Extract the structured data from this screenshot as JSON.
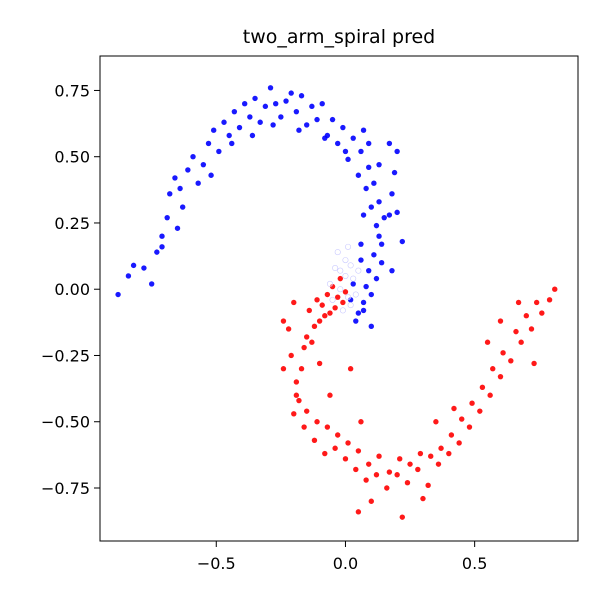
{
  "chart_data": {
    "type": "scatter",
    "title": "two_arm_spiral pred",
    "xlabel": "",
    "ylabel": "",
    "xlim": [
      -0.95,
      0.9
    ],
    "ylim": [
      -0.95,
      0.88
    ],
    "xticks": [
      -0.5,
      0.0,
      0.5
    ],
    "xtick_labels": [
      "−0.5",
      "0.0",
      "0.5"
    ],
    "yticks": [
      0.75,
      0.5,
      0.25,
      0.0,
      -0.25,
      -0.5,
      -0.75
    ],
    "ytick_labels": [
      "0.75",
      "0.50",
      "0.25",
      "0.00",
      "−0.25",
      "−0.50",
      "−0.75"
    ],
    "grid": false,
    "legend": false,
    "colors": {
      "class_a": "#0000ff",
      "class_b": "#ff0000",
      "uncertain": "#ffffff"
    },
    "series": [
      {
        "values": [
          {
            "x": -0.88,
            "y": -0.02
          },
          {
            "x": -0.84,
            "y": 0.05
          },
          {
            "x": -0.82,
            "y": 0.09
          },
          {
            "x": -0.78,
            "y": 0.08
          },
          {
            "x": -0.75,
            "y": 0.02
          },
          {
            "x": -0.73,
            "y": 0.14
          },
          {
            "x": -0.71,
            "y": 0.2
          },
          {
            "x": -0.69,
            "y": 0.27
          },
          {
            "x": -0.68,
            "y": 0.36
          },
          {
            "x": -0.66,
            "y": 0.42
          },
          {
            "x": -0.64,
            "y": 0.38
          },
          {
            "x": -0.63,
            "y": 0.31
          },
          {
            "x": -0.61,
            "y": 0.45
          },
          {
            "x": -0.59,
            "y": 0.5
          },
          {
            "x": -0.57,
            "y": 0.4
          },
          {
            "x": -0.55,
            "y": 0.47
          },
          {
            "x": -0.53,
            "y": 0.55
          },
          {
            "x": -0.51,
            "y": 0.6
          },
          {
            "x": -0.49,
            "y": 0.52
          },
          {
            "x": -0.47,
            "y": 0.63
          },
          {
            "x": -0.45,
            "y": 0.58
          },
          {
            "x": -0.43,
            "y": 0.67
          },
          {
            "x": -0.41,
            "y": 0.61
          },
          {
            "x": -0.39,
            "y": 0.7
          },
          {
            "x": -0.37,
            "y": 0.65
          },
          {
            "x": -0.35,
            "y": 0.72
          },
          {
            "x": -0.33,
            "y": 0.63
          },
          {
            "x": -0.31,
            "y": 0.69
          },
          {
            "x": -0.29,
            "y": 0.76
          },
          {
            "x": -0.27,
            "y": 0.7
          },
          {
            "x": -0.25,
            "y": 0.65
          },
          {
            "x": -0.23,
            "y": 0.71
          },
          {
            "x": -0.21,
            "y": 0.74
          },
          {
            "x": -0.19,
            "y": 0.67
          },
          {
            "x": -0.17,
            "y": 0.73
          },
          {
            "x": -0.15,
            "y": 0.62
          },
          {
            "x": -0.13,
            "y": 0.69
          },
          {
            "x": -0.11,
            "y": 0.64
          },
          {
            "x": -0.09,
            "y": 0.7
          },
          {
            "x": -0.07,
            "y": 0.58
          },
          {
            "x": -0.05,
            "y": 0.64
          },
          {
            "x": -0.03,
            "y": 0.55
          },
          {
            "x": -0.01,
            "y": 0.61
          },
          {
            "x": 0.01,
            "y": 0.49
          },
          {
            "x": 0.03,
            "y": 0.57
          },
          {
            "x": 0.05,
            "y": 0.43
          },
          {
            "x": 0.06,
            "y": 0.52
          },
          {
            "x": 0.08,
            "y": 0.38
          },
          {
            "x": 0.09,
            "y": 0.46
          },
          {
            "x": 0.1,
            "y": 0.31
          },
          {
            "x": 0.11,
            "y": 0.4
          },
          {
            "x": 0.12,
            "y": 0.24
          },
          {
            "x": 0.13,
            "y": 0.33
          },
          {
            "x": 0.14,
            "y": 0.17
          },
          {
            "x": 0.15,
            "y": 0.27
          },
          {
            "x": 0.14,
            "y": 0.1
          },
          {
            "x": 0.13,
            "y": 0.2
          },
          {
            "x": 0.12,
            "y": 0.04
          },
          {
            "x": 0.11,
            "y": 0.13
          },
          {
            "x": 0.1,
            "y": -0.02
          },
          {
            "x": 0.09,
            "y": 0.07
          },
          {
            "x": 0.08,
            "y": 0.01
          },
          {
            "x": 0.07,
            "y": -0.05
          },
          {
            "x": 0.06,
            "y": 0.11
          },
          {
            "x": 0.05,
            "y": -0.09
          },
          {
            "x": 0.04,
            "y": -0.12
          },
          {
            "x": 0.03,
            "y": 0.02
          },
          {
            "x": 0.02,
            "y": -0.04
          },
          {
            "x": 0.17,
            "y": 0.28
          },
          {
            "x": 0.18,
            "y": 0.36
          },
          {
            "x": 0.2,
            "y": 0.29
          },
          {
            "x": 0.19,
            "y": 0.44
          },
          {
            "x": 0.2,
            "y": 0.52
          },
          {
            "x": 0.17,
            "y": 0.55
          },
          {
            "x": 0.22,
            "y": 0.18
          },
          {
            "x": 0.18,
            "y": 0.07
          },
          {
            "x": -0.71,
            "y": 0.16
          },
          {
            "x": -0.65,
            "y": 0.23
          },
          {
            "x": -0.52,
            "y": 0.43
          },
          {
            "x": -0.44,
            "y": 0.55
          },
          {
            "x": -0.36,
            "y": 0.58
          },
          {
            "x": -0.28,
            "y": 0.62
          },
          {
            "x": -0.18,
            "y": 0.6
          },
          {
            "x": -0.08,
            "y": 0.57
          },
          {
            "x": 0.0,
            "y": 0.52
          },
          {
            "x": 0.07,
            "y": 0.6
          },
          {
            "x": 0.09,
            "y": 0.55
          },
          {
            "x": 0.13,
            "y": 0.47
          },
          {
            "x": 0.07,
            "y": 0.28
          },
          {
            "x": 0.06,
            "y": 0.17
          },
          {
            "x": 0.07,
            "y": -0.08
          },
          {
            "x": 0.1,
            "y": -0.14
          }
        ]
      },
      {
        "values": [
          {
            "x": -0.22,
            "y": -0.15
          },
          {
            "x": -0.21,
            "y": -0.25
          },
          {
            "x": -0.19,
            "y": -0.35
          },
          {
            "x": -0.18,
            "y": -0.42
          },
          {
            "x": -0.17,
            "y": -0.3
          },
          {
            "x": -0.16,
            "y": -0.22
          },
          {
            "x": -0.15,
            "y": -0.18
          },
          {
            "x": -0.14,
            "y": -0.08
          },
          {
            "x": -0.13,
            "y": -0.2
          },
          {
            "x": -0.12,
            "y": -0.14
          },
          {
            "x": -0.11,
            "y": -0.04
          },
          {
            "x": -0.1,
            "y": -0.12
          },
          {
            "x": -0.09,
            "y": -0.06
          },
          {
            "x": -0.08,
            "y": -0.1
          },
          {
            "x": -0.07,
            "y": -0.02
          },
          {
            "x": -0.06,
            "y": -0.09
          },
          {
            "x": -0.05,
            "y": 0.01
          },
          {
            "x": -0.04,
            "y": -0.07
          },
          {
            "x": -0.03,
            "y": -0.03
          },
          {
            "x": -0.02,
            "y": 0.04
          },
          {
            "x": -0.01,
            "y": -0.05
          },
          {
            "x": 0.0,
            "y": -0.01
          },
          {
            "x": -0.24,
            "y": -0.3
          },
          {
            "x": -0.2,
            "y": -0.47
          },
          {
            "x": -0.16,
            "y": -0.52
          },
          {
            "x": -0.12,
            "y": -0.57
          },
          {
            "x": -0.08,
            "y": -0.62
          },
          {
            "x": -0.04,
            "y": -0.6
          },
          {
            "x": 0.0,
            "y": -0.64
          },
          {
            "x": 0.04,
            "y": -0.68
          },
          {
            "x": 0.08,
            "y": -0.72
          },
          {
            "x": 0.12,
            "y": -0.7
          },
          {
            "x": 0.16,
            "y": -0.75
          },
          {
            "x": 0.2,
            "y": -0.7
          },
          {
            "x": 0.24,
            "y": -0.73
          },
          {
            "x": 0.28,
            "y": -0.68
          },
          {
            "x": 0.32,
            "y": -0.74
          },
          {
            "x": 0.36,
            "y": -0.66
          },
          {
            "x": 0.4,
            "y": -0.62
          },
          {
            "x": 0.44,
            "y": -0.58
          },
          {
            "x": 0.48,
            "y": -0.52
          },
          {
            "x": 0.52,
            "y": -0.46
          },
          {
            "x": 0.56,
            "y": -0.4
          },
          {
            "x": 0.6,
            "y": -0.33
          },
          {
            "x": 0.64,
            "y": -0.27
          },
          {
            "x": 0.68,
            "y": -0.2
          },
          {
            "x": 0.72,
            "y": -0.15
          },
          {
            "x": 0.76,
            "y": -0.09
          },
          {
            "x": 0.79,
            "y": -0.04
          },
          {
            "x": 0.81,
            "y": 0.0
          },
          {
            "x": 0.74,
            "y": -0.05
          },
          {
            "x": 0.7,
            "y": -0.1
          },
          {
            "x": 0.66,
            "y": -0.16
          },
          {
            "x": 0.61,
            "y": -0.24
          },
          {
            "x": 0.57,
            "y": -0.3
          },
          {
            "x": 0.53,
            "y": -0.37
          },
          {
            "x": 0.49,
            "y": -0.43
          },
          {
            "x": 0.45,
            "y": -0.49
          },
          {
            "x": 0.41,
            "y": -0.55
          },
          {
            "x": 0.37,
            "y": -0.6
          },
          {
            "x": 0.33,
            "y": -0.63
          },
          {
            "x": 0.29,
            "y": -0.62
          },
          {
            "x": 0.25,
            "y": -0.66
          },
          {
            "x": 0.21,
            "y": -0.64
          },
          {
            "x": 0.17,
            "y": -0.69
          },
          {
            "x": 0.13,
            "y": -0.63
          },
          {
            "x": 0.09,
            "y": -0.66
          },
          {
            "x": 0.05,
            "y": -0.61
          },
          {
            "x": 0.01,
            "y": -0.58
          },
          {
            "x": -0.03,
            "y": -0.55
          },
          {
            "x": -0.07,
            "y": -0.52
          },
          {
            "x": -0.11,
            "y": -0.5
          },
          {
            "x": -0.15,
            "y": -0.46
          },
          {
            "x": -0.19,
            "y": -0.4
          },
          {
            "x": 0.1,
            "y": -0.8
          },
          {
            "x": 0.22,
            "y": -0.86
          },
          {
            "x": 0.3,
            "y": -0.79
          },
          {
            "x": 0.05,
            "y": -0.84
          },
          {
            "x": 0.6,
            "y": -0.12
          },
          {
            "x": 0.67,
            "y": -0.05
          },
          {
            "x": 0.73,
            "y": -0.28
          },
          {
            "x": 0.55,
            "y": -0.2
          },
          {
            "x": 0.42,
            "y": -0.45
          },
          {
            "x": 0.35,
            "y": -0.5
          },
          {
            "x": -0.2,
            "y": -0.05
          },
          {
            "x": -0.24,
            "y": -0.12
          },
          {
            "x": -0.1,
            "y": -0.28
          },
          {
            "x": -0.06,
            "y": -0.4
          },
          {
            "x": 0.02,
            "y": -0.3
          },
          {
            "x": 0.06,
            "y": -0.5
          }
        ]
      },
      {
        "values": [
          {
            "x": -0.06,
            "y": 0.02
          },
          {
            "x": -0.04,
            "y": 0.08
          },
          {
            "x": -0.02,
            "y": 0.0
          },
          {
            "x": 0.0,
            "y": 0.05
          },
          {
            "x": 0.01,
            "y": -0.03
          },
          {
            "x": 0.02,
            "y": 0.09
          },
          {
            "x": 0.03,
            "y": 0.04
          },
          {
            "x": 0.0,
            "y": 0.11
          },
          {
            "x": -0.03,
            "y": 0.14
          },
          {
            "x": -0.05,
            "y": -0.04
          },
          {
            "x": 0.04,
            "y": -0.02
          },
          {
            "x": 0.01,
            "y": 0.16
          },
          {
            "x": -0.02,
            "y": 0.07
          },
          {
            "x": 0.05,
            "y": 0.07
          },
          {
            "x": -0.01,
            "y": -0.08
          },
          {
            "x": 0.02,
            "y": -0.06
          }
        ]
      }
    ]
  }
}
